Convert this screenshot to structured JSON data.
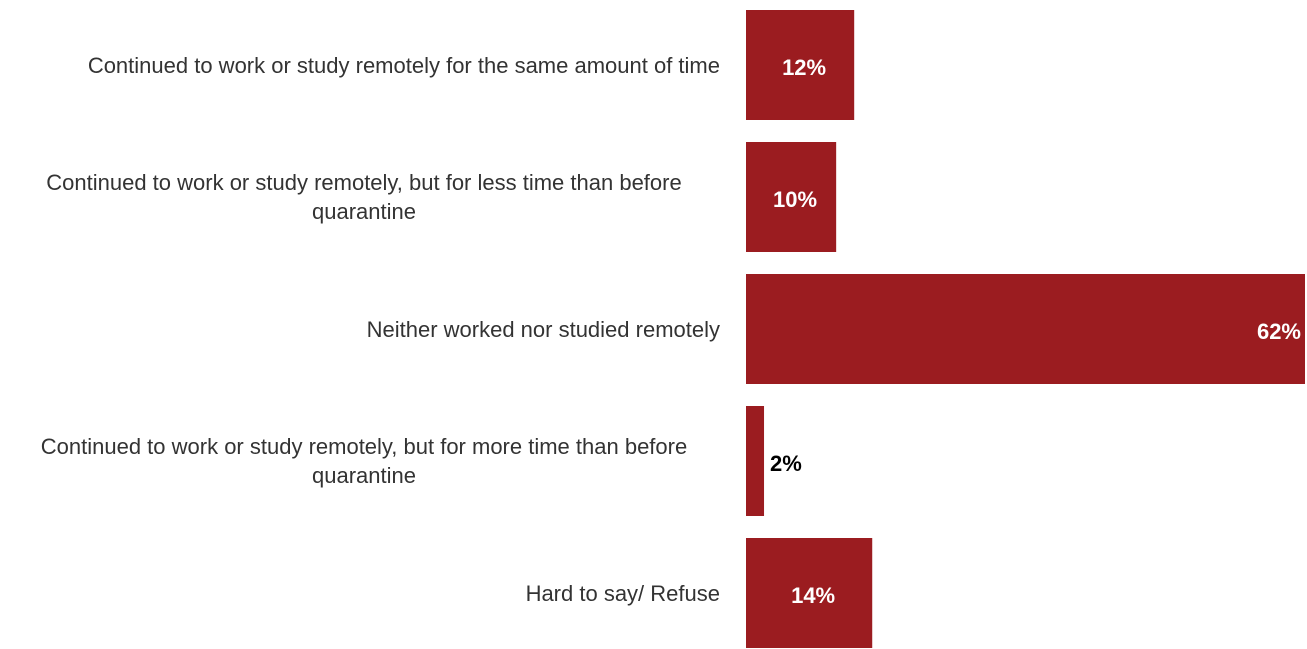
{
  "chart_data": {
    "type": "barh",
    "categories": [
      "Continued to work or study remotely for the same amount of time",
      "Continued to work or study remotely, but for less time than before quarantine",
      "Neither worked nor studied remotely",
      "Continued to work or study remotely, but for more time than before quarantine",
      "Hard to say/ Refuse"
    ],
    "values": [
      12,
      10,
      62,
      2,
      14
    ],
    "value_labels": [
      "12%",
      "10%",
      "62%",
      "2%",
      "14%"
    ],
    "color": "#9b1c20"
  }
}
